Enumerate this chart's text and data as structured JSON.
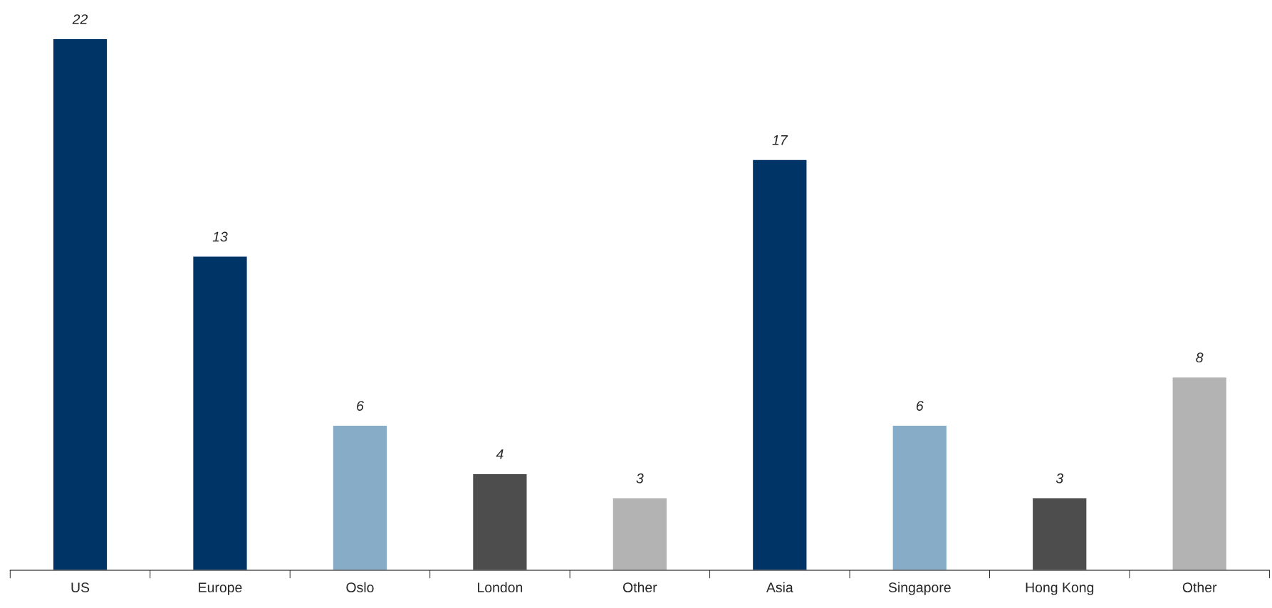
{
  "chart_data": {
    "type": "bar",
    "categories": [
      "US",
      "Europe",
      "Oslo",
      "London",
      "Other",
      "Asia",
      "Singapore",
      "Hong Kong",
      "Other"
    ],
    "values": [
      22,
      13,
      6,
      4,
      3,
      17,
      6,
      3,
      8
    ],
    "colors": [
      "#003366",
      "#003366",
      "#86acc8",
      "#4d4d4d",
      "#b3b3b3",
      "#003366",
      "#86acc8",
      "#4d4d4d",
      "#b3b3b3"
    ],
    "data_labels": true,
    "grid": false,
    "legend": false
  }
}
